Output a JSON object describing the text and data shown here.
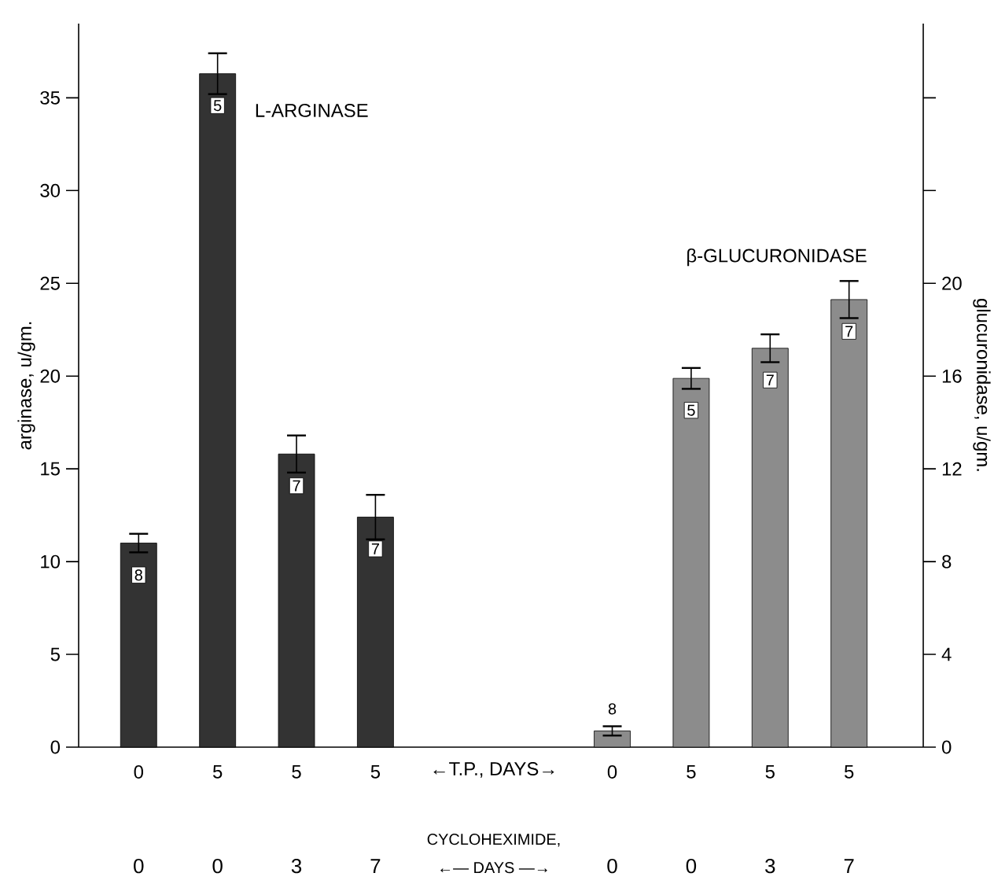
{
  "chart_data": {
    "type": "bar",
    "categories": [
      "0",
      "5",
      "5",
      "5",
      null,
      null,
      "0",
      "5",
      "5",
      "5"
    ],
    "xlabel": "←T.P., DAYS→",
    "ylabel": "arginase, u/gm.",
    "y2label": "glucuronidase, u/gm.",
    "ylim": [
      0,
      39
    ],
    "yticks": [
      0,
      5,
      10,
      15,
      20,
      25,
      30,
      35
    ],
    "y2lim": [
      0,
      31.2
    ],
    "y2ticks": [
      0,
      4,
      8,
      12,
      16,
      20,
      {
        "value": 24,
        "label": null
      },
      {
        "value": 28,
        "label": null
      }
    ],
    "series": [
      {
        "name": "L-ARGINASE",
        "color": "#333333",
        "axis": "y",
        "values": [
          11.0,
          36.3,
          15.8,
          12.4,
          null,
          null,
          null,
          null,
          null,
          null
        ],
        "errors": [
          0.5,
          1.1,
          1.0,
          1.2,
          null,
          null,
          null,
          null,
          null,
          null
        ]
      },
      {
        "name": "β-GLUCURONIDASE",
        "color": "#8c8c8c",
        "axis": "y2",
        "values": [
          null,
          null,
          null,
          null,
          null,
          null,
          0.7,
          15.9,
          17.2,
          19.3
        ],
        "errors": [
          null,
          null,
          null,
          null,
          null,
          null,
          0.2,
          0.45,
          0.6,
          0.8
        ]
      }
    ],
    "annotations": [
      "8",
      "5",
      "7",
      "7",
      "8",
      "5",
      "7",
      "7",
      "0",
      "0",
      "3",
      "7",
      "0",
      "0",
      "3",
      "7",
      "CYCLOHEXIMIDE,",
      "←— DAYS —→"
    ]
  }
}
